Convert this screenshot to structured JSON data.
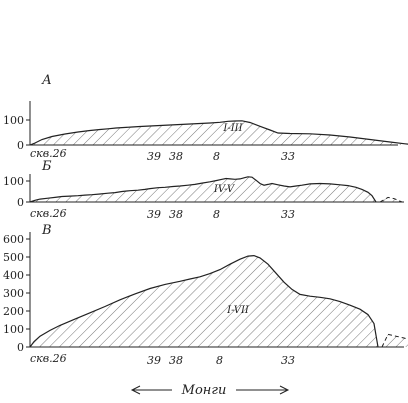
{
  "panels": [
    {
      "label": "А",
      "zone_label": "I-III",
      "y_ticks": [
        "100",
        "0"
      ],
      "profile": [
        [
          0,
          0
        ],
        [
          5,
          8
        ],
        [
          12,
          22
        ],
        [
          22,
          34
        ],
        [
          35,
          44
        ],
        [
          48,
          52
        ],
        [
          60,
          58
        ],
        [
          70,
          62
        ],
        [
          78,
          65
        ],
        [
          86,
          68
        ],
        [
          94,
          70
        ],
        [
          102,
          72
        ],
        [
          110,
          74
        ],
        [
          120,
          76
        ],
        [
          130,
          78
        ],
        [
          140,
          80
        ],
        [
          150,
          82
        ],
        [
          160,
          84
        ],
        [
          170,
          86
        ],
        [
          180,
          88
        ],
        [
          190,
          91
        ],
        [
          198,
          95
        ],
        [
          205,
          96
        ],
        [
          212,
          97
        ],
        [
          220,
          90
        ],
        [
          230,
          75
        ],
        [
          240,
          60
        ],
        [
          248,
          48
        ],
        [
          260,
          46
        ],
        [
          280,
          45
        ],
        [
          300,
          40
        ],
        [
          320,
          32
        ],
        [
          340,
          22
        ],
        [
          360,
          12
        ],
        [
          375,
          5
        ],
        [
          385,
          0
        ]
      ],
      "extension": []
    },
    {
      "label": "Б",
      "zone_label": "IV-V",
      "y_ticks": [
        "100",
        "0"
      ],
      "profile": [
        [
          0,
          0
        ],
        [
          5,
          8
        ],
        [
          10,
          14
        ],
        [
          18,
          18
        ],
        [
          25,
          22
        ],
        [
          32,
          26
        ],
        [
          40,
          28
        ],
        [
          48,
          30
        ],
        [
          55,
          33
        ],
        [
          62,
          35
        ],
        [
          70,
          38
        ],
        [
          78,
          42
        ],
        [
          85,
          45
        ],
        [
          92,
          50
        ],
        [
          100,
          54
        ],
        [
          108,
          56
        ],
        [
          115,
          60
        ],
        [
          120,
          64
        ],
        [
          128,
          68
        ],
        [
          135,
          70
        ],
        [
          143,
          74
        ],
        [
          150,
          76
        ],
        [
          158,
          80
        ],
        [
          165,
          84
        ],
        [
          172,
          90
        ],
        [
          180,
          96
        ],
        [
          186,
          102
        ],
        [
          192,
          108
        ],
        [
          196,
          112
        ],
        [
          200,
          110
        ],
        [
          205,
          108
        ],
        [
          210,
          110
        ],
        [
          215,
          116
        ],
        [
          218,
          120
        ],
        [
          222,
          118
        ],
        [
          226,
          104
        ],
        [
          230,
          88
        ],
        [
          234,
          80
        ],
        [
          238,
          84
        ],
        [
          242,
          88
        ],
        [
          248,
          82
        ],
        [
          254,
          76
        ],
        [
          260,
          72
        ],
        [
          266,
          76
        ],
        [
          272,
          80
        ],
        [
          280,
          86
        ],
        [
          290,
          88
        ],
        [
          300,
          86
        ],
        [
          310,
          82
        ],
        [
          318,
          78
        ],
        [
          326,
          70
        ],
        [
          332,
          60
        ],
        [
          338,
          46
        ],
        [
          342,
          30
        ],
        [
          346,
          0
        ]
      ],
      "extension": [
        [
          350,
          0
        ],
        [
          358,
          22
        ],
        [
          364,
          16
        ],
        [
          372,
          0
        ]
      ]
    },
    {
      "label": "В",
      "zone_label": "I-VII",
      "y_ticks": [
        "600",
        "500",
        "400",
        "300",
        "200",
        "100",
        "0"
      ],
      "profile": [
        [
          0,
          0
        ],
        [
          4,
          30
        ],
        [
          10,
          60
        ],
        [
          20,
          92
        ],
        [
          30,
          120
        ],
        [
          45,
          155
        ],
        [
          60,
          190
        ],
        [
          75,
          225
        ],
        [
          90,
          262
        ],
        [
          105,
          295
        ],
        [
          120,
          325
        ],
        [
          135,
          348
        ],
        [
          150,
          365
        ],
        [
          160,
          378
        ],
        [
          170,
          390
        ],
        [
          180,
          408
        ],
        [
          190,
          430
        ],
        [
          200,
          460
        ],
        [
          210,
          488
        ],
        [
          218,
          505
        ],
        [
          224,
          508
        ],
        [
          230,
          495
        ],
        [
          238,
          460
        ],
        [
          246,
          410
        ],
        [
          254,
          360
        ],
        [
          262,
          320
        ],
        [
          270,
          292
        ],
        [
          280,
          282
        ],
        [
          290,
          276
        ],
        [
          300,
          268
        ],
        [
          310,
          252
        ],
        [
          320,
          232
        ],
        [
          330,
          210
        ],
        [
          338,
          180
        ],
        [
          344,
          130
        ],
        [
          348,
          0
        ]
      ],
      "extension": [
        [
          352,
          0
        ],
        [
          358,
          70
        ],
        [
          366,
          60
        ],
        [
          374,
          50
        ],
        [
          382,
          36
        ],
        [
          392,
          0
        ]
      ]
    }
  ],
  "wells": [
    {
      "name": "скв.26",
      "pos": 0
    },
    {
      "name": "39",
      "pos": 110
    },
    {
      "name": "38",
      "pos": 132
    },
    {
      "name": "8",
      "pos": 176
    },
    {
      "name": "33",
      "pos": 244
    }
  ],
  "direction": {
    "text": "Монги",
    "icon": "bidirectional-arrow-icon"
  }
}
